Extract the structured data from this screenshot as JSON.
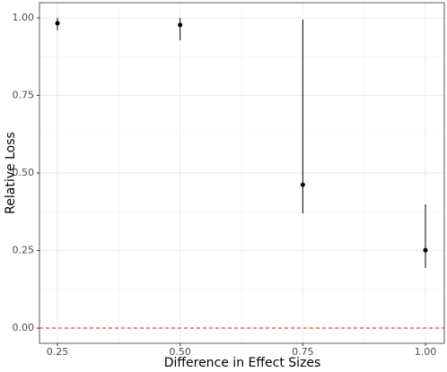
{
  "chart_data": {
    "type": "scatter",
    "x_label": "Difference in Effect Sizes",
    "y_label": "Relative Loss",
    "x": [
      0.25,
      0.5,
      0.75,
      1.0
    ],
    "values": [
      0.983,
      0.977,
      0.462,
      0.251
    ],
    "lower": [
      0.96,
      0.928,
      0.37,
      0.194
    ],
    "upper": [
      1.0,
      1.0,
      0.994,
      0.399
    ],
    "color": "#000000",
    "xlim": [
      0.2134,
      1.0384
    ],
    "ylim": [
      -0.049,
      1.049
    ],
    "xticks": [
      0.25,
      {
        "value": 0.5,
        "label": "0.50"
      },
      0.75,
      {
        "value": 1.0,
        "label": "1.00"
      }
    ],
    "yticks": [
      {
        "value": 0,
        "label": "0.00"
      },
      0.25,
      {
        "value": 0.5,
        "label": "0.50"
      },
      0.75,
      {
        "value": 1.0,
        "label": "1.00"
      }
    ],
    "x_minor_ticks": [
      0.375,
      0.625,
      0.875
    ],
    "y_minor_ticks": [
      0.125,
      0.375,
      0.625,
      0.875
    ],
    "grid": true,
    "hline": 0,
    "hline_color": "#e41a1c"
  }
}
